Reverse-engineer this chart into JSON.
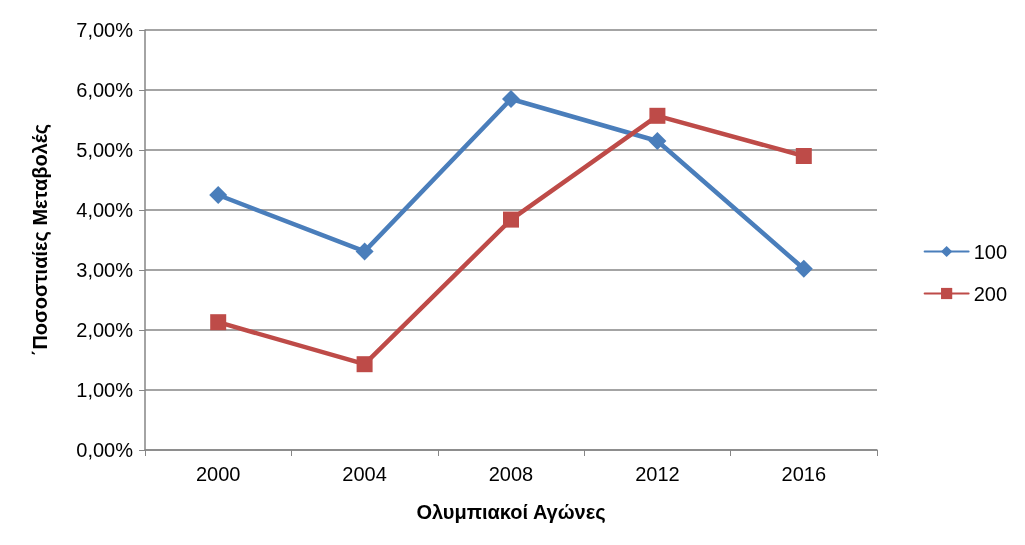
{
  "chart_data": {
    "type": "line",
    "xlabel": "Ολυμπιακοί Αγώνες",
    "ylabel": "΄Ποσοστιαίες Μεταβολές",
    "categories": [
      "2000",
      "2004",
      "2008",
      "2012",
      "2016"
    ],
    "series": [
      {
        "name": "100",
        "color": "#4a7ebb",
        "marker": "diamond",
        "values": [
          4.25,
          3.31,
          5.85,
          5.15,
          3.02
        ]
      },
      {
        "name": "200",
        "color": "#be4b48",
        "marker": "square",
        "values": [
          2.13,
          1.43,
          3.84,
          5.57,
          4.9
        ]
      }
    ],
    "ylim": [
      0,
      7
    ],
    "yticks": [
      {
        "value": 0,
        "label": "0,00%"
      },
      {
        "value": 1,
        "label": "1,00%"
      },
      {
        "value": 2,
        "label": "2,00%"
      },
      {
        "value": 3,
        "label": "3,00%"
      },
      {
        "value": 4,
        "label": "4,00%"
      },
      {
        "value": 5,
        "label": "5,00%"
      },
      {
        "value": 6,
        "label": "6,00%"
      },
      {
        "value": 7,
        "label": "7,00%"
      }
    ],
    "grid": "y",
    "legend": "right",
    "line_style": "solid"
  }
}
